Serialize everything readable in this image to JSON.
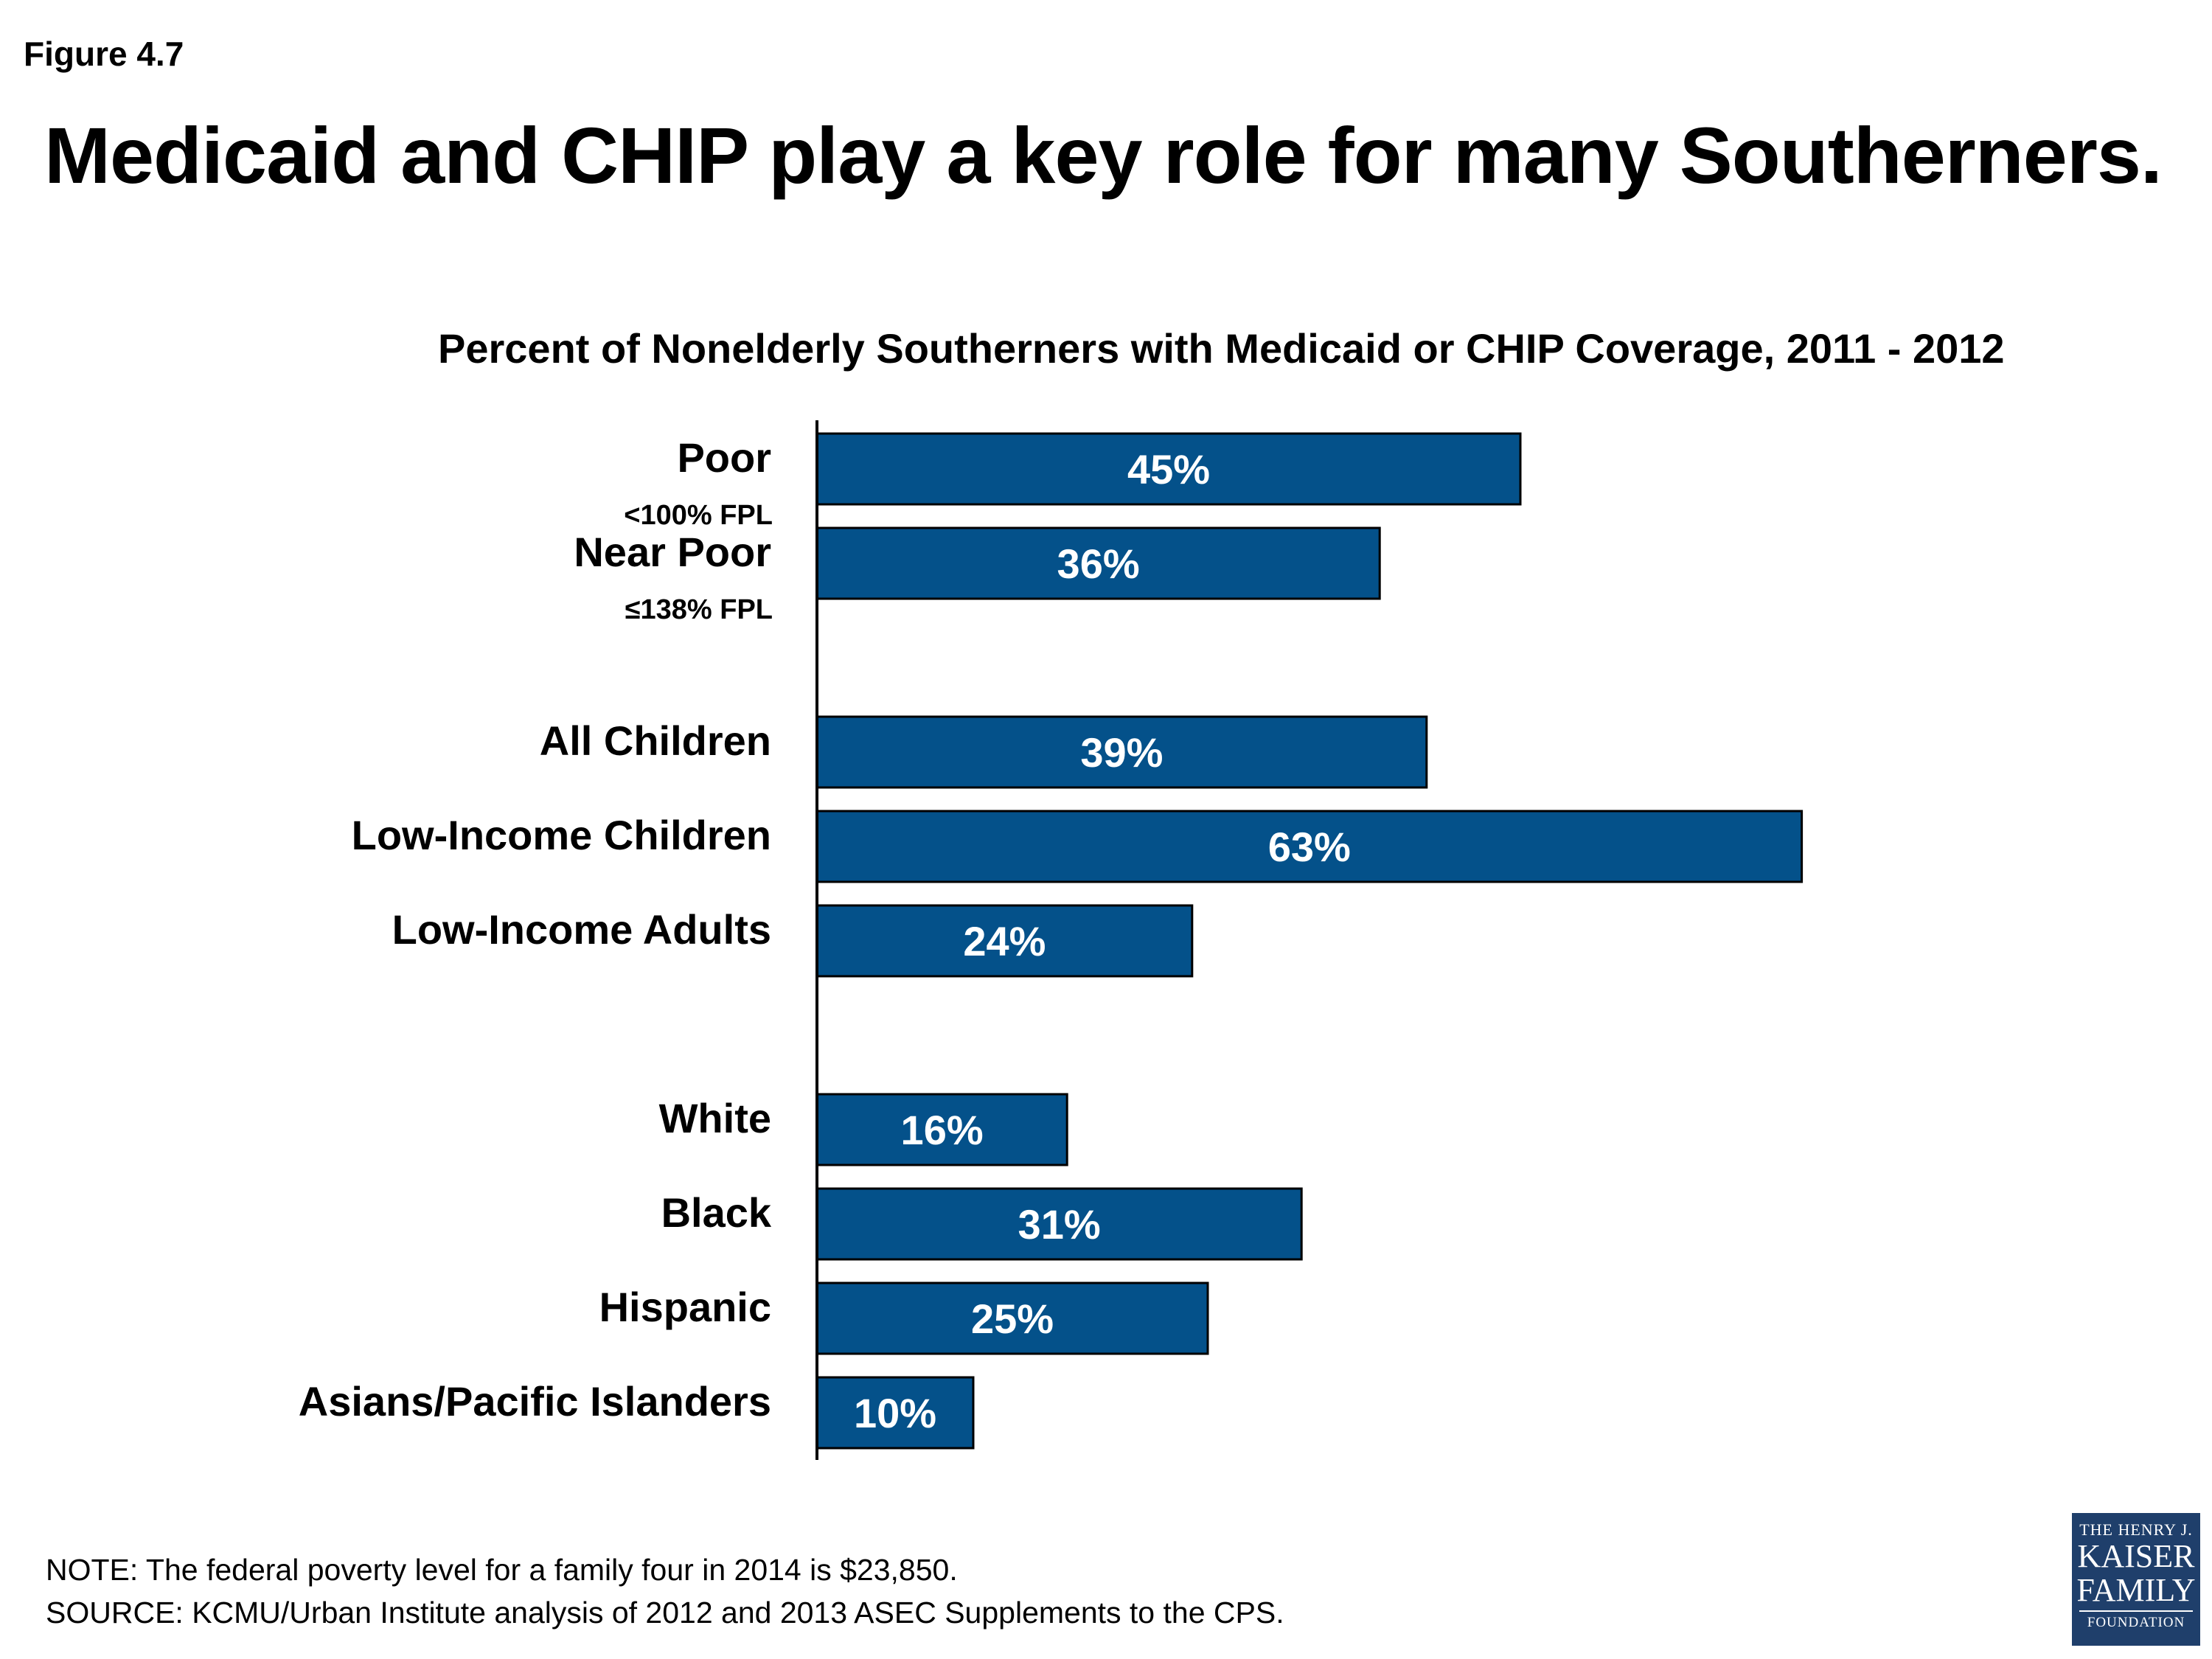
{
  "figure_label": "Figure 4.7",
  "headline": "Medicaid and CHIP play a key role for many Southerners.",
  "notes": {
    "note": "NOTE: The federal poverty level for a family four in 2014 is $23,850.",
    "source": "SOURCE: KCMU/Urban Institute analysis of 2012 and 2013 ASEC Supplements to the CPS."
  },
  "logo": {
    "line1": "THE HENRY J.",
    "line2": "KAISER",
    "line3": "FAMILY",
    "line4": "FOUNDATION"
  },
  "colors": {
    "bar_fill": "#04518a",
    "bar_stroke": "#000000",
    "bar_label": "#ffffff",
    "axis": "#000000",
    "logo_bg": "#1f3f6b"
  },
  "chart_data": {
    "type": "bar",
    "orientation": "horizontal",
    "title": "Percent of Nonelderly Southerners with Medicaid or CHIP Coverage, 2011 - 2012",
    "xlabel": "",
    "ylabel": "",
    "xlim": [
      0,
      100
    ],
    "grid": false,
    "legend": "none",
    "groups": [
      {
        "items": [
          {
            "category": "Poor",
            "sublabel": "<100% FPL",
            "value": 45,
            "label": "45%"
          },
          {
            "category": "Near Poor",
            "sublabel": "≤138% FPL",
            "value": 36,
            "label": "36%"
          }
        ]
      },
      {
        "items": [
          {
            "category": "All Children",
            "value": 39,
            "label": "39%"
          },
          {
            "category": "Low-Income Children",
            "value": 63,
            "label": "63%"
          },
          {
            "category": "Low-Income Adults",
            "value": 24,
            "label": "24%"
          }
        ]
      },
      {
        "items": [
          {
            "category": "White",
            "value": 16,
            "label": "16%"
          },
          {
            "category": "Black",
            "value": 31,
            "label": "31%"
          },
          {
            "category": "Hispanic",
            "value": 25,
            "label": "25%"
          },
          {
            "category": "Asians/Pacific Islanders",
            "value": 10,
            "label": "10%"
          }
        ]
      }
    ]
  }
}
